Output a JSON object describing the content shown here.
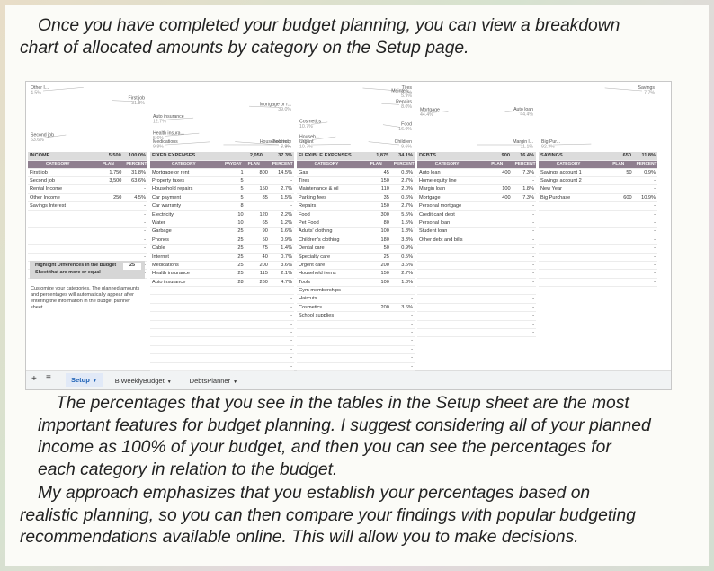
{
  "intro": [
    "Once you have completed your budget planning, you can view a breakdown",
    "chart of allocated amounts by category on the Setup page."
  ],
  "sections": [
    {
      "title": "INCOME",
      "total": "5,500",
      "total_percent": "100.0%",
      "columns": [
        "CATEGORY",
        "PLAN",
        "PERCENT"
      ],
      "rows": [
        [
          "First job",
          "1,750",
          "31.8%"
        ],
        [
          "Second job",
          "3,500",
          "63.6%"
        ],
        [
          "Rental Income",
          null,
          "-"
        ],
        [
          "Other Income",
          "250",
          "4.5%"
        ],
        [
          "Savings Interest",
          null,
          "-"
        ],
        [
          null,
          null,
          "-"
        ],
        [
          null,
          null,
          "-"
        ],
        [
          null,
          null,
          "-"
        ],
        [
          null,
          null,
          "-"
        ],
        [
          null,
          null,
          "-"
        ],
        [
          null,
          null,
          "-"
        ],
        [
          null,
          null,
          "-"
        ],
        [
          null,
          null,
          "-"
        ]
      ],
      "chart": {
        "labels": [
          "First job",
          "Second job",
          "Other I..."
        ],
        "values": [
          31.8,
          63.6,
          4.5
        ],
        "value_labels": [
          "31.8%",
          "63.6%",
          "4.5%"
        ],
        "colors": [
          "#c9d5bd",
          "#a8bed0",
          "#e4e8ec"
        ]
      }
    },
    {
      "title": "FIXED EXPENSES",
      "total": "2,050",
      "total_percent": "37.3%",
      "columns": [
        "CATEGORY",
        "PAYDAY",
        "PLAN",
        "PERCENT"
      ],
      "rows": [
        [
          "Mortgage or rent",
          "1",
          "800",
          "14.5%"
        ],
        [
          "Property taxes",
          "5",
          null,
          "-"
        ],
        [
          "Household repairs",
          "5",
          "150",
          "2.7%"
        ],
        [
          "Car payment",
          "5",
          "85",
          "1.5%"
        ],
        [
          "Car warranty",
          "8",
          null,
          "-"
        ],
        [
          "Electricity",
          "10",
          "120",
          "2.2%"
        ],
        [
          "Water",
          "10",
          "65",
          "1.2%"
        ],
        [
          "Garbage",
          "25",
          "90",
          "1.6%"
        ],
        [
          "Phones",
          "25",
          "50",
          "0.9%"
        ],
        [
          "Cable",
          "25",
          "75",
          "1.4%"
        ],
        [
          "Internet",
          "25",
          "40",
          "0.7%"
        ],
        [
          "Medications",
          "25",
          "200",
          "3.6%"
        ],
        [
          "Health insurance",
          "25",
          "115",
          "2.1%"
        ],
        [
          "Auto insurance",
          "28",
          "260",
          "4.7%"
        ],
        [
          null,
          null,
          null,
          "-"
        ],
        [
          null,
          null,
          null,
          "-"
        ],
        [
          null,
          null,
          null,
          "-"
        ],
        [
          null,
          null,
          null,
          "-"
        ],
        [
          null,
          null,
          null,
          "-"
        ],
        [
          null,
          null,
          null,
          "-"
        ],
        [
          null,
          null,
          null,
          "-"
        ],
        [
          null,
          null,
          null,
          "-"
        ],
        [
          null,
          null,
          null,
          "-"
        ],
        [
          null,
          null,
          null,
          "-"
        ]
      ],
      "chart": {
        "labels": [
          "Mortgage or r...",
          "Household re...",
          "Electricity",
          "Medications",
          "Health insura...",
          "Auto insurance"
        ],
        "values": [
          39.0,
          7.3,
          5.9,
          9.8,
          5.6,
          12.7
        ],
        "value_labels": [
          "39.0%",
          "7.3%",
          "5.9%",
          "9.8%",
          "5.6%",
          "12.7%"
        ],
        "colors": [
          "#e6e6e6",
          "#d9c3c3",
          "#c7d3c0",
          "#d5dbe3",
          "#b9cad8",
          "#dfe6d6"
        ]
      }
    },
    {
      "title": "FLEXIBLE EXPENSES",
      "total": "1,875",
      "total_percent": "34.1%",
      "columns": [
        "CATEGORY",
        "PLAN",
        "PERCENT"
      ],
      "rows": [
        [
          "Gas",
          "45",
          "0.8%"
        ],
        [
          "Tires",
          "150",
          "2.7%"
        ],
        [
          "Maintenance & oil",
          "110",
          "2.0%"
        ],
        [
          "Parking fees",
          "35",
          "0.6%"
        ],
        [
          "Repairs",
          "150",
          "2.7%"
        ],
        [
          "Food",
          "300",
          "5.5%"
        ],
        [
          "Pet Food",
          "80",
          "1.5%"
        ],
        [
          "Adults' clothing",
          "100",
          "1.8%"
        ],
        [
          "Children's clothing",
          "180",
          "3.3%"
        ],
        [
          "Dental care",
          "50",
          "0.9%"
        ],
        [
          "Specialty care",
          "25",
          "0.5%"
        ],
        [
          "Urgent care",
          "200",
          "3.6%"
        ],
        [
          "Household items",
          "150",
          "2.7%"
        ],
        [
          "Tools",
          "100",
          "1.8%"
        ],
        [
          "Gym memberships",
          null,
          "-"
        ],
        [
          "Haircuts",
          null,
          "-"
        ],
        [
          "Cosmetics",
          "200",
          "3.6%"
        ],
        [
          "School supplies",
          null,
          "-"
        ],
        [
          null,
          null,
          "-"
        ],
        [
          null,
          null,
          "-"
        ],
        [
          null,
          null,
          "-"
        ],
        [
          null,
          null,
          "-"
        ],
        [
          null,
          null,
          "-"
        ],
        [
          null,
          null,
          "-"
        ]
      ],
      "chart": {
        "labels": [
          "Tires",
          "Mainten...",
          "Repairs",
          "Food",
          "Children",
          "Urgent",
          "Househ...",
          "Cosmetics"
        ],
        "values": [
          8.0,
          5.9,
          8.0,
          16.0,
          9.6,
          10.7,
          8.0,
          10.7
        ],
        "value_labels": [
          "8.0%",
          "5.9%",
          "8.0%",
          "16.0%",
          "9.6%",
          "10.7%",
          "8.0%",
          "10.7%"
        ],
        "colors": [
          "#e3d6d6",
          "#c6d3bd",
          "#d8b9b9",
          "#e9e9e9",
          "#b8c9d6",
          "#d3c3d0",
          "#a8bed0",
          "#dfe5d7"
        ]
      }
    },
    {
      "title": "DEBTS",
      "total": "900",
      "total_percent": "16.4%",
      "columns": [
        "CATEGORY",
        "PLAN",
        "PERCENT"
      ],
      "rows": [
        [
          "Auto loan",
          "400",
          "7.3%"
        ],
        [
          "Home equity line",
          null,
          "-"
        ],
        [
          "Margin loan",
          "100",
          "1.8%"
        ],
        [
          "Mortgage",
          "400",
          "7.3%"
        ],
        [
          "Personal mortgage",
          null,
          "-"
        ],
        [
          "Credit card debt",
          null,
          "-"
        ],
        [
          "Personal loan",
          null,
          "-"
        ],
        [
          "Student loan",
          null,
          "-"
        ],
        [
          "Other debt and bills",
          null,
          "-"
        ],
        [
          null,
          null,
          "-"
        ],
        [
          null,
          null,
          "-"
        ],
        [
          null,
          null,
          "-"
        ],
        [
          null,
          null,
          "-"
        ],
        [
          null,
          null,
          "-"
        ],
        [
          null,
          null,
          "-"
        ],
        [
          null,
          null,
          "-"
        ],
        [
          null,
          null,
          "-"
        ],
        [
          null,
          null,
          "-"
        ],
        [
          null,
          null,
          "-"
        ],
        [
          null,
          null,
          "-"
        ]
      ],
      "chart": {
        "labels": [
          "Auto loan",
          "Margin l...",
          "Mortgage"
        ],
        "values": [
          44.4,
          11.1,
          44.4
        ],
        "value_labels": [
          "44.4%",
          "11.1%",
          "44.4%"
        ],
        "colors": [
          "#e6e6e6",
          "#dccaca",
          "#eeeeee"
        ]
      }
    },
    {
      "title": "SAVINGS",
      "total": "650",
      "total_percent": "11.8%",
      "columns": [
        "CATEGORY",
        "PLAN",
        "PERCENT"
      ],
      "rows": [
        [
          "Savings account 1",
          "50",
          "0.9%"
        ],
        [
          "Savings account 2",
          null,
          "-"
        ],
        [
          "New Year",
          null,
          "-"
        ],
        [
          "Big Purchase",
          "600",
          "10.9%"
        ],
        [
          null,
          null,
          "-"
        ],
        [
          null,
          null,
          "-"
        ],
        [
          null,
          null,
          "-"
        ],
        [
          null,
          null,
          "-"
        ],
        [
          null,
          null,
          "-"
        ],
        [
          null,
          null,
          "-"
        ],
        [
          null,
          null,
          "-"
        ],
        [
          null,
          null,
          "-"
        ],
        [
          null,
          null,
          "-"
        ],
        [
          null,
          null,
          "-"
        ]
      ],
      "chart": {
        "labels": [
          "Savings",
          "Big Pur..."
        ],
        "values": [
          7.7,
          92.3
        ],
        "value_labels": [
          "7.7%",
          "92.3%"
        ],
        "colors": [
          "#dcdcdc",
          "#eeeeee"
        ]
      }
    }
  ],
  "highlight": {
    "label": [
      "Highlight Differences in the Budget",
      "Sheet that are more or equal"
    ],
    "value": "25"
  },
  "note": "Customize your categories. The planned amounts and percentages will automatically appear after entering the information in the budget planner sheet.",
  "tabs": [
    "Setup",
    "BiWeeklyBudget",
    "DebtsPlanner"
  ],
  "body": [
    [
      "The percentages that you see in the tables in the Setup sheet are the most",
      "important features for budget planning. I suggest considering all of your planned",
      "income as 100% of your budget, and then you can see the percentages for",
      "each category in relation to the budget."
    ],
    [
      "My approach emphasizes that you establish your percentages based on",
      "realistic planning, so you can then compare your findings with popular budgeting",
      "recommendations available online. This will allow you to make decisions."
    ]
  ]
}
